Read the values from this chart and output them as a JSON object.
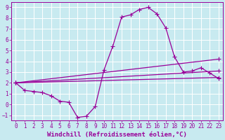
{
  "xlabel": "Windchill (Refroidissement éolien,°C)",
  "bg_color": "#c8eaf0",
  "line_color": "#990099",
  "grid_color": "#ffffff",
  "xlim": [
    -0.5,
    23.5
  ],
  "ylim": [
    -1.5,
    9.5
  ],
  "yticks": [
    -1,
    0,
    1,
    2,
    3,
    4,
    5,
    6,
    7,
    8,
    9
  ],
  "xticks": [
    0,
    1,
    2,
    3,
    4,
    5,
    6,
    7,
    8,
    9,
    10,
    11,
    12,
    13,
    14,
    15,
    16,
    17,
    18,
    19,
    20,
    21,
    22,
    23
  ],
  "lines": [
    {
      "x": [
        0,
        1,
        2,
        3,
        4,
        5,
        6,
        7,
        8,
        9,
        10,
        11,
        12,
        13,
        14,
        15,
        16,
        17,
        18,
        19,
        20,
        21,
        22,
        23
      ],
      "y": [
        2.0,
        1.3,
        1.2,
        1.1,
        0.8,
        0.3,
        0.2,
        -1.2,
        -1.1,
        -0.2,
        3.2,
        5.4,
        8.1,
        8.3,
        8.8,
        9.0,
        8.4,
        7.1,
        4.4,
        3.0,
        3.1,
        3.4,
        2.9,
        2.4
      ]
    },
    {
      "x": [
        0,
        23
      ],
      "y": [
        2.0,
        4.2
      ]
    },
    {
      "x": [
        0,
        23
      ],
      "y": [
        2.0,
        3.1
      ]
    },
    {
      "x": [
        0,
        23
      ],
      "y": [
        2.0,
        2.5
      ]
    }
  ],
  "marker": "+",
  "markersize": 4,
  "linewidth": 0.9,
  "tick_fontsize": 5.5,
  "label_fontsize": 6.5
}
